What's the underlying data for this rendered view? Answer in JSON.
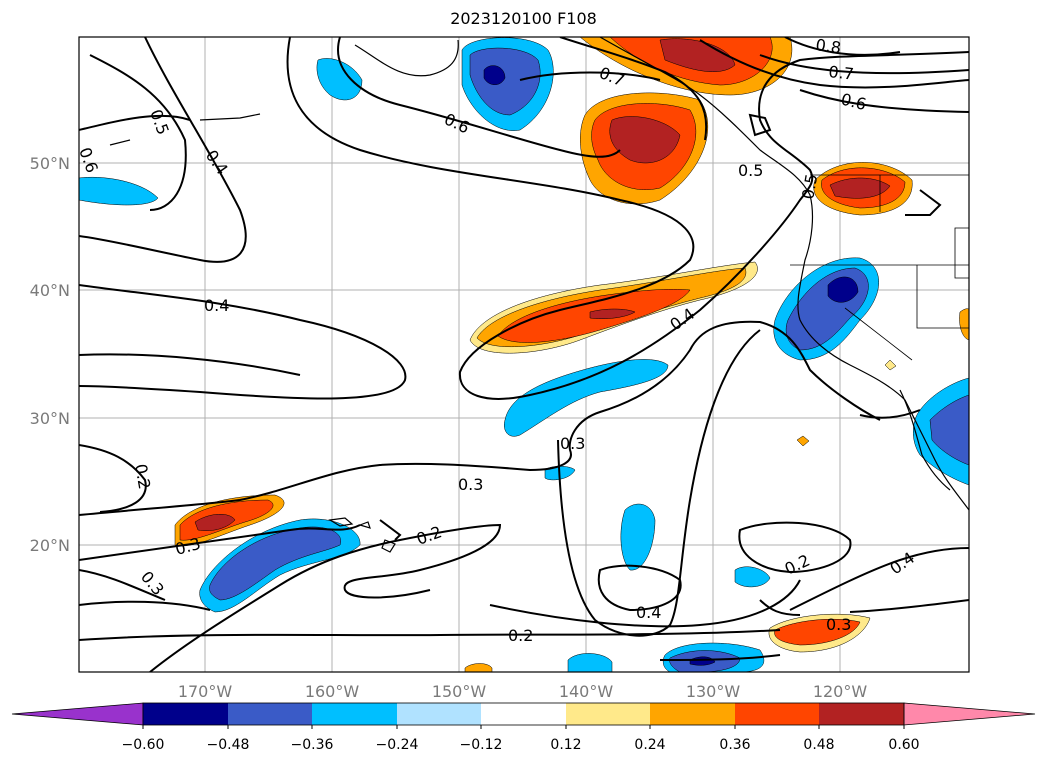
{
  "title": "2023120100 F108",
  "map": {
    "lat_labels": [
      "50°N",
      "40°N",
      "30°N",
      "20°N"
    ],
    "lon_labels": [
      "170°W",
      "160°W",
      "150°W",
      "140°W",
      "130°W",
      "120°W"
    ],
    "contour_labels": {
      "c08": "0.8",
      "c07a": "0.7",
      "c07b": "0.7",
      "c06a": "0.6",
      "c06b": "0.6",
      "c06c": "0.6",
      "c05a": "0.5",
      "c05b": "0.5",
      "c05c": "0.5",
      "c04a": "0.4",
      "c04b": "0.4",
      "c04c": "0.4",
      "c04d": "0.4",
      "c04e": "0.4",
      "c03a": "0.3",
      "c03b": "0.3",
      "c03c": "0.3",
      "c03d": "0.3",
      "c03e": "0.3",
      "c02a": "0.2",
      "c02b": "0.2",
      "c02c": "0.2",
      "c02d": "0.2"
    }
  },
  "colorbar": {
    "labels": [
      "−0.60",
      "−0.48",
      "−0.36",
      "−0.24",
      "−0.12",
      "0.12",
      "0.24",
      "0.36",
      "0.48",
      "0.60"
    ],
    "colors": [
      "#9932cc",
      "#00008b",
      "#3a5bc7",
      "#00bfff",
      "#b0e2ff",
      "#ffffff",
      "#ffe98a",
      "#ffa500",
      "#ff4500",
      "#b22222",
      "#ff88aa"
    ]
  }
}
